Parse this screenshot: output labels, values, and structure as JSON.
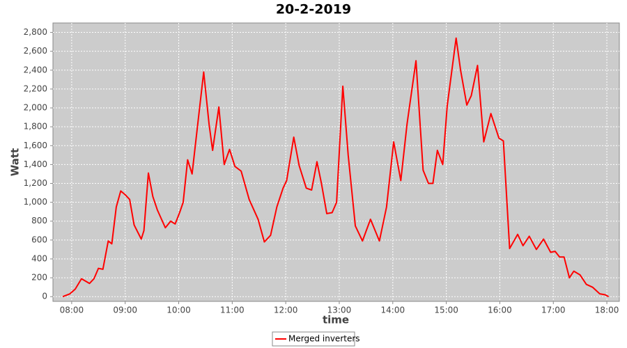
{
  "chart_data": {
    "type": "line",
    "title": "20-2-2019",
    "xlabel": "time",
    "ylabel": "Watt",
    "x": [
      "07:50",
      "07:58",
      "08:04",
      "08:11",
      "08:20",
      "08:25",
      "08:30",
      "08:35",
      "08:41",
      "08:45",
      "08:50",
      "08:55",
      "09:00",
      "09:05",
      "09:10",
      "09:18",
      "09:21",
      "09:26",
      "09:31",
      "09:36",
      "09:45",
      "09:51",
      "09:56",
      "10:01",
      "10:05",
      "10:10",
      "10:15",
      "10:21",
      "10:28",
      "10:34",
      "10:38",
      "10:45",
      "10:51",
      "10:57",
      "11:03",
      "11:10",
      "11:19",
      "11:29",
      "11:36",
      "11:43",
      "11:50",
      "11:57",
      "12:01",
      "12:09",
      "12:15",
      "12:23",
      "12:29",
      "12:35",
      "12:40",
      "12:46",
      "12:52",
      "12:57",
      "13:04",
      "13:10",
      "13:18",
      "13:26",
      "13:35",
      "13:45",
      "13:53",
      "14:01",
      "14:09",
      "14:16",
      "14:26",
      "14:34",
      "14:40",
      "14:45",
      "14:50",
      "14:56",
      "15:01",
      "15:11",
      "15:16",
      "15:23",
      "15:28",
      "15:35",
      "15:42",
      "15:50",
      "15:59",
      "16:04",
      "16:11",
      "16:20",
      "16:26",
      "16:33",
      "16:41",
      "16:49",
      "16:57",
      "17:02",
      "17:07",
      "17:12",
      "17:18",
      "17:23",
      "17:30",
      "17:37",
      "17:44",
      "17:52",
      "17:58",
      "18:02"
    ],
    "series": [
      {
        "name": "Merged inverters",
        "color": "#ff0000",
        "values": [
          0,
          30,
          80,
          190,
          140,
          190,
          300,
          290,
          590,
          560,
          950,
          1120,
          1080,
          1030,
          760,
          610,
          700,
          1310,
          1060,
          920,
          730,
          800,
          770,
          890,
          1000,
          1450,
          1300,
          1800,
          2380,
          1830,
          1550,
          2010,
          1400,
          1560,
          1380,
          1330,
          1030,
          820,
          580,
          650,
          950,
          1150,
          1230,
          1690,
          1390,
          1150,
          1130,
          1430,
          1200,
          880,
          890,
          1000,
          2230,
          1500,
          750,
          590,
          820,
          590,
          950,
          1640,
          1230,
          1830,
          2500,
          1340,
          1200,
          1200,
          1550,
          1400,
          2020,
          2740,
          2400,
          2030,
          2130,
          2450,
          1640,
          1940,
          1680,
          1650,
          510,
          660,
          540,
          640,
          500,
          610,
          470,
          480,
          420,
          420,
          200,
          270,
          230,
          130,
          100,
          30,
          20,
          0
        ]
      }
    ],
    "xlim": [
      "07:39",
      "18:14"
    ],
    "xticks": [
      "08:00",
      "09:00",
      "10:00",
      "11:00",
      "12:00",
      "13:00",
      "14:00",
      "15:00",
      "16:00",
      "17:00",
      "18:00"
    ],
    "ylim": [
      -50,
      2900
    ],
    "yticks": [
      0,
      200,
      400,
      600,
      800,
      {
        "value": 1000,
        "label": "1,000"
      },
      {
        "value": 1200,
        "label": "1,200"
      },
      {
        "value": 1400,
        "label": "1,400"
      },
      {
        "value": 1600,
        "label": "1,600"
      },
      {
        "value": 1800,
        "label": "1,800"
      },
      {
        "value": 2000,
        "label": "2,000"
      },
      {
        "value": 2200,
        "label": "2,200"
      },
      {
        "value": 2400,
        "label": "2,400"
      },
      {
        "value": 2600,
        "label": "2,600"
      },
      {
        "value": 2800,
        "label": "2,800"
      }
    ],
    "grid": true,
    "legend": "bottom"
  }
}
